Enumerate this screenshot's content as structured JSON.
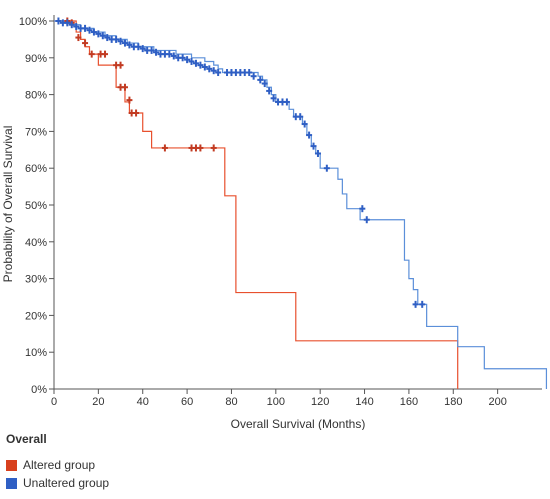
{
  "chart_data": {
    "type": "line",
    "subtype": "kaplan-meier step",
    "xlabel": "Overall Survival (Months)",
    "ylabel": "Probability of Overall Survival",
    "xlim": [
      0,
      220
    ],
    "ylim": [
      0,
      100
    ],
    "x_ticks": [
      0,
      20,
      40,
      60,
      80,
      100,
      120,
      140,
      160,
      180,
      200
    ],
    "y_ticks": [
      0,
      10,
      20,
      30,
      40,
      50,
      60,
      70,
      80,
      90,
      100
    ],
    "y_tick_labels": [
      "0%",
      "10%",
      "20%",
      "30%",
      "40%",
      "50%",
      "60%",
      "70%",
      "80%",
      "90%",
      "100%"
    ],
    "grid": false,
    "legend": {
      "title": "Overall",
      "placement": "bottom-left"
    },
    "series": [
      {
        "name": "Altered group",
        "color": "#e8502e",
        "marker_color": "#c23b22",
        "steps": [
          [
            0,
            100
          ],
          [
            10,
            100
          ],
          [
            10,
            97
          ],
          [
            12,
            97
          ],
          [
            12,
            95
          ],
          [
            14,
            95
          ],
          [
            14,
            93
          ],
          [
            16,
            93
          ],
          [
            16,
            91
          ],
          [
            20,
            91
          ],
          [
            20,
            88
          ],
          [
            26,
            88
          ],
          [
            26,
            88
          ],
          [
            28,
            88
          ],
          [
            28,
            82
          ],
          [
            32,
            82
          ],
          [
            32,
            78
          ],
          [
            34,
            78
          ],
          [
            34,
            75
          ],
          [
            40,
            75
          ],
          [
            40,
            70
          ],
          [
            44,
            70
          ],
          [
            44,
            65.5
          ],
          [
            77,
            65.5
          ],
          [
            77,
            52.5
          ],
          [
            82,
            52.5
          ],
          [
            82,
            26.2
          ],
          [
            109,
            26.2
          ],
          [
            109,
            13.1
          ],
          [
            182,
            13.1
          ],
          [
            182,
            0
          ]
        ],
        "censored": [
          [
            6,
            100
          ],
          [
            8,
            99.5
          ],
          [
            11,
            95.5
          ],
          [
            14,
            94
          ],
          [
            17,
            91
          ],
          [
            21,
            91
          ],
          [
            23,
            91
          ],
          [
            28,
            88
          ],
          [
            30,
            88
          ],
          [
            30,
            82
          ],
          [
            32,
            82
          ],
          [
            34,
            78.5
          ],
          [
            35,
            75
          ],
          [
            37,
            75
          ],
          [
            50,
            65.5
          ],
          [
            62,
            65.5
          ],
          [
            64,
            65.5
          ],
          [
            66,
            65.5
          ],
          [
            72,
            65.5
          ]
        ]
      },
      {
        "name": "Unaltered group",
        "color": "#5b8fd9",
        "marker_color": "#2f5fc4",
        "steps": [
          [
            0,
            100
          ],
          [
            5,
            100
          ],
          [
            5,
            99.5
          ],
          [
            8,
            99
          ],
          [
            12,
            98
          ],
          [
            18,
            97
          ],
          [
            23,
            96
          ],
          [
            28,
            95
          ],
          [
            33,
            94
          ],
          [
            38,
            93
          ],
          [
            45,
            92
          ],
          [
            55,
            91
          ],
          [
            62,
            90
          ],
          [
            68,
            89
          ],
          [
            72,
            88
          ],
          [
            74,
            87
          ],
          [
            76,
            86
          ],
          [
            90,
            86
          ],
          [
            92,
            85
          ],
          [
            94,
            84
          ],
          [
            96,
            82
          ],
          [
            98,
            80
          ],
          [
            100,
            78
          ],
          [
            106,
            78
          ],
          [
            106,
            76
          ],
          [
            108,
            76
          ],
          [
            108,
            74
          ],
          [
            112,
            74
          ],
          [
            112,
            72
          ],
          [
            114,
            72
          ],
          [
            114,
            69
          ],
          [
            116,
            69
          ],
          [
            116,
            66
          ],
          [
            118,
            66
          ],
          [
            118,
            64
          ],
          [
            120,
            64
          ],
          [
            120,
            60
          ],
          [
            128,
            60
          ],
          [
            128,
            57
          ],
          [
            130,
            57
          ],
          [
            130,
            53
          ],
          [
            132,
            53
          ],
          [
            132,
            49
          ],
          [
            138,
            49
          ],
          [
            138,
            46
          ],
          [
            158,
            46
          ],
          [
            158,
            35
          ],
          [
            160,
            35
          ],
          [
            160,
            30
          ],
          [
            162,
            30
          ],
          [
            162,
            27
          ],
          [
            164,
            27
          ],
          [
            164,
            23
          ],
          [
            168,
            23
          ],
          [
            168,
            17
          ],
          [
            182,
            17
          ],
          [
            182,
            11.5
          ],
          [
            194,
            11.5
          ],
          [
            194,
            5.5
          ],
          [
            222,
            5.5
          ],
          [
            222,
            0
          ]
        ],
        "censored": [
          [
            2,
            100
          ],
          [
            4,
            99.5
          ],
          [
            6,
            99.5
          ],
          [
            8,
            99
          ],
          [
            10,
            98.5
          ],
          [
            12,
            98
          ],
          [
            14,
            98
          ],
          [
            16,
            97.5
          ],
          [
            18,
            97
          ],
          [
            20,
            96.5
          ],
          [
            22,
            96
          ],
          [
            24,
            95.5
          ],
          [
            26,
            95
          ],
          [
            28,
            95
          ],
          [
            30,
            94.5
          ],
          [
            32,
            94
          ],
          [
            34,
            93.5
          ],
          [
            36,
            93
          ],
          [
            38,
            93
          ],
          [
            40,
            92.5
          ],
          [
            42,
            92
          ],
          [
            44,
            92
          ],
          [
            46,
            91.5
          ],
          [
            48,
            91
          ],
          [
            50,
            91
          ],
          [
            52,
            91
          ],
          [
            54,
            90.5
          ],
          [
            56,
            90
          ],
          [
            58,
            90
          ],
          [
            60,
            89.5
          ],
          [
            62,
            89
          ],
          [
            64,
            88.5
          ],
          [
            66,
            88
          ],
          [
            68,
            87.5
          ],
          [
            70,
            87
          ],
          [
            72,
            86.5
          ],
          [
            74,
            86
          ],
          [
            78,
            86
          ],
          [
            80,
            86
          ],
          [
            82,
            86
          ],
          [
            84,
            86
          ],
          [
            86,
            86
          ],
          [
            88,
            86
          ],
          [
            90,
            85
          ],
          [
            93,
            84
          ],
          [
            95,
            83
          ],
          [
            97,
            81
          ],
          [
            99,
            79
          ],
          [
            101,
            78
          ],
          [
            103,
            78
          ],
          [
            105,
            78
          ],
          [
            109,
            74
          ],
          [
            111,
            74
          ],
          [
            113,
            72
          ],
          [
            115,
            69
          ],
          [
            117,
            66
          ],
          [
            119,
            64
          ],
          [
            123,
            60
          ],
          [
            139,
            49
          ],
          [
            141,
            46
          ],
          [
            163,
            23
          ],
          [
            166,
            23
          ]
        ]
      }
    ]
  }
}
